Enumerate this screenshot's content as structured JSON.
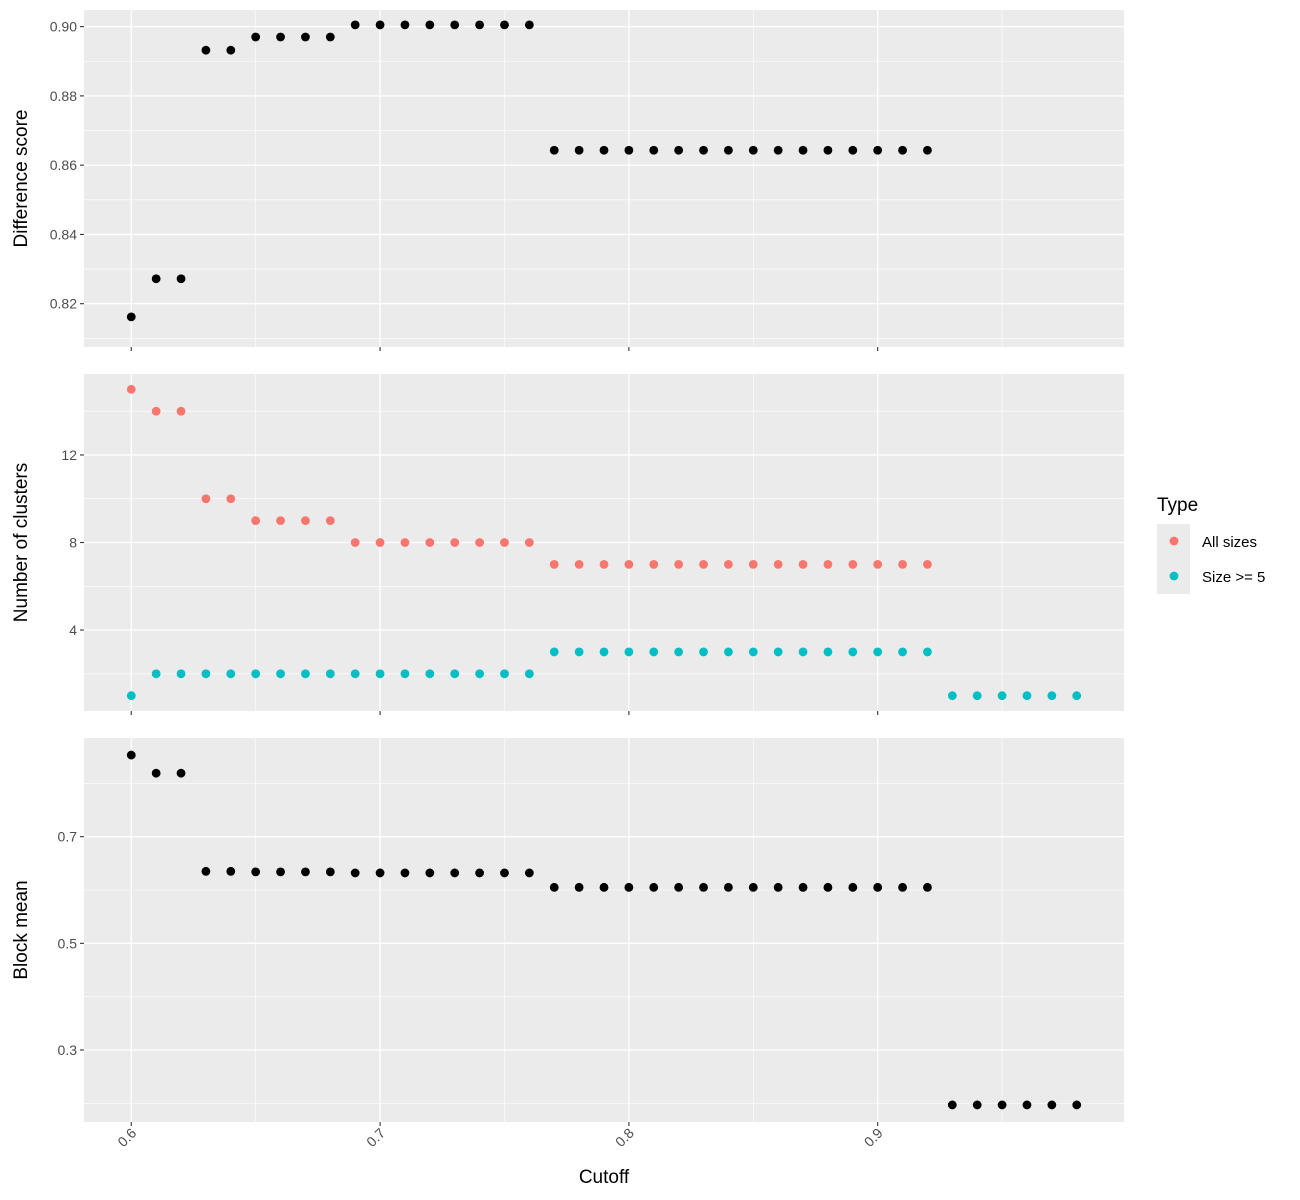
{
  "chart_data": {
    "type": "scatter",
    "xlabel": "Cutoff",
    "x_ticks": [
      0.6,
      0.7,
      0.8,
      0.9
    ],
    "x_tick_labels": [
      "0.6",
      "0.7",
      "0.8",
      "0.9"
    ],
    "xlim": [
      0.581,
      0.999
    ],
    "panels": [
      {
        "ylabel": "Difference score",
        "ylim": [
          0.8075,
          0.9048
        ],
        "y_ticks": [
          0.82,
          0.84,
          0.86,
          0.88,
          0.9
        ],
        "y_tick_labels": [
          "0.82",
          "0.84",
          "0.86",
          "0.88",
          "0.90"
        ],
        "series": [
          {
            "color": "#000000",
            "x": [
              0.6,
              0.61,
              0.62,
              0.63,
              0.64,
              0.65,
              0.66,
              0.67,
              0.68,
              0.69,
              0.7,
              0.71,
              0.72,
              0.73,
              0.74,
              0.75,
              0.76,
              0.77,
              0.78,
              0.79,
              0.8,
              0.81,
              0.82,
              0.83,
              0.84,
              0.85,
              0.86,
              0.87,
              0.88,
              0.89,
              0.9,
              0.91,
              0.92
            ],
            "y": [
              0.8162,
              0.8272,
              0.8272,
              0.8932,
              0.8932,
              0.897,
              0.897,
              0.897,
              0.897,
              0.9005,
              0.9005,
              0.9005,
              0.9005,
              0.9005,
              0.9005,
              0.9005,
              0.9005,
              0.8643,
              0.8643,
              0.8643,
              0.8643,
              0.8643,
              0.8643,
              0.8643,
              0.8643,
              0.8643,
              0.8643,
              0.8643,
              0.8643,
              0.8643,
              0.8643,
              0.8643,
              0.8643
            ]
          }
        ]
      },
      {
        "ylabel": "Number of clusters",
        "ylim": [
          0.3,
          15.7
        ],
        "y_ticks": [
          4,
          8,
          12
        ],
        "y_tick_labels": [
          "4",
          "8",
          "12"
        ],
        "series": [
          {
            "name": "All sizes",
            "color": "#F8766D",
            "x": [
              0.6,
              0.61,
              0.62,
              0.63,
              0.64,
              0.65,
              0.66,
              0.67,
              0.68,
              0.69,
              0.7,
              0.71,
              0.72,
              0.73,
              0.74,
              0.75,
              0.76,
              0.77,
              0.78,
              0.79,
              0.8,
              0.81,
              0.82,
              0.83,
              0.84,
              0.85,
              0.86,
              0.87,
              0.88,
              0.89,
              0.9,
              0.91,
              0.92
            ],
            "y": [
              15,
              14,
              14,
              10,
              10,
              9,
              9,
              9,
              9,
              8,
              8,
              8,
              8,
              8,
              8,
              8,
              8,
              7,
              7,
              7,
              7,
              7,
              7,
              7,
              7,
              7,
              7,
              7,
              7,
              7,
              7,
              7,
              7
            ]
          },
          {
            "name": "Size >= 5",
            "color": "#00BFC4",
            "x": [
              0.6,
              0.61,
              0.62,
              0.63,
              0.64,
              0.65,
              0.66,
              0.67,
              0.68,
              0.69,
              0.7,
              0.71,
              0.72,
              0.73,
              0.74,
              0.75,
              0.76,
              0.77,
              0.78,
              0.79,
              0.8,
              0.81,
              0.82,
              0.83,
              0.84,
              0.85,
              0.86,
              0.87,
              0.88,
              0.89,
              0.9,
              0.91,
              0.92,
              0.93,
              0.94,
              0.95,
              0.96,
              0.97,
              0.98
            ],
            "y": [
              1,
              2,
              2,
              2,
              2,
              2,
              2,
              2,
              2,
              2,
              2,
              2,
              2,
              2,
              2,
              2,
              2,
              3,
              3,
              3,
              3,
              3,
              3,
              3,
              3,
              3,
              3,
              3,
              3,
              3,
              3,
              3,
              3,
              1,
              1,
              1,
              1,
              1,
              1
            ]
          }
        ]
      },
      {
        "ylabel": "Block mean",
        "ylim": [
          0.165,
          0.885
        ],
        "y_ticks": [
          0.3,
          0.5,
          0.7
        ],
        "y_tick_labels": [
          "0.3",
          "0.5",
          "0.7"
        ],
        "series": [
          {
            "color": "#000000",
            "x": [
              0.6,
              0.61,
              0.62,
              0.63,
              0.64,
              0.65,
              0.66,
              0.67,
              0.68,
              0.69,
              0.7,
              0.71,
              0.72,
              0.73,
              0.74,
              0.75,
              0.76,
              0.77,
              0.78,
              0.79,
              0.8,
              0.81,
              0.82,
              0.83,
              0.84,
              0.85,
              0.86,
              0.87,
              0.88,
              0.89,
              0.9,
              0.91,
              0.92,
              0.93,
              0.94,
              0.95,
              0.96,
              0.97,
              0.98
            ],
            "y": [
              0.853,
              0.819,
              0.819,
              0.635,
              0.635,
              0.634,
              0.634,
              0.634,
              0.634,
              0.632,
              0.632,
              0.632,
              0.632,
              0.632,
              0.632,
              0.632,
              0.632,
              0.605,
              0.605,
              0.605,
              0.605,
              0.605,
              0.605,
              0.605,
              0.605,
              0.605,
              0.605,
              0.605,
              0.605,
              0.605,
              0.605,
              0.605,
              0.605,
              0.197,
              0.197,
              0.197,
              0.197,
              0.197,
              0.197
            ]
          }
        ]
      }
    ],
    "legend": {
      "title": "Type",
      "placement": "right",
      "entries": [
        {
          "label": "All sizes",
          "color": "#F8766D"
        },
        {
          "label": "Size >= 5",
          "color": "#00BFC4"
        }
      ]
    },
    "grid": true,
    "panel_background": "#EBEBEB",
    "grid_color": "#FFFFFF"
  }
}
